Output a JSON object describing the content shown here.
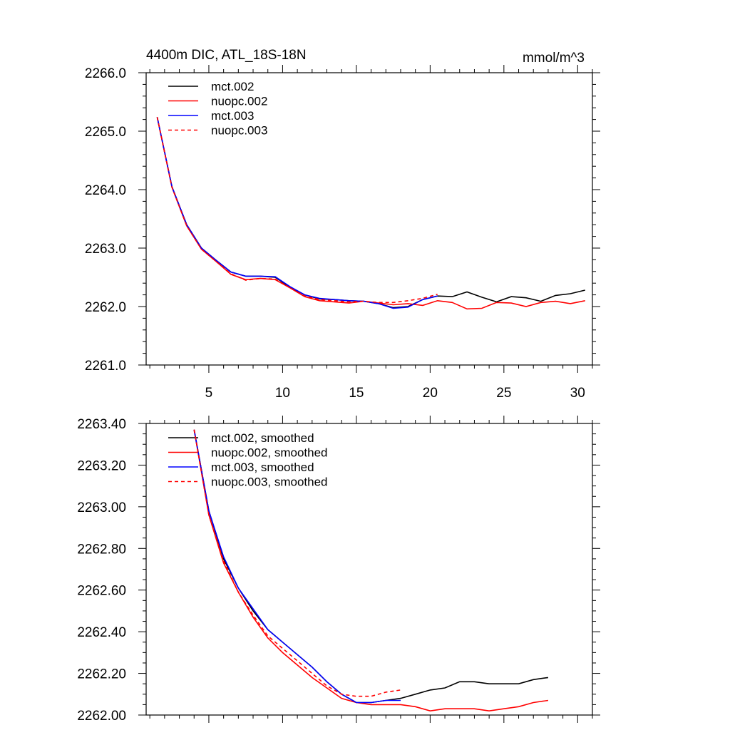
{
  "chart_data": [
    {
      "type": "line",
      "title": "4400m DIC, ATL_18S-18N",
      "units": "mmol/m^3",
      "xlabel": "",
      "ylabel": "",
      "xlim": [
        0.75,
        31
      ],
      "ylim": [
        2261.0,
        2266.0
      ],
      "xticks": [
        5,
        10,
        15,
        20,
        25,
        30
      ],
      "xtick_labels": [
        "5",
        "10",
        "15",
        "20",
        "25",
        "30"
      ],
      "yticks": [
        2261,
        2262,
        2263,
        2264,
        2265,
        2266
      ],
      "ytick_labels": [
        "2261.0",
        "2262.0",
        "2263.0",
        "2264.0",
        "2265.0",
        "2266.0"
      ],
      "legend_position": "top-left",
      "series": [
        {
          "name": "mct.002",
          "color": "#000000",
          "dash": "solid",
          "x": [
            1.5,
            2.5,
            3.5,
            4.5,
            5.5,
            6.5,
            7.5,
            8.5,
            9.5,
            10.5,
            11.5,
            12.5,
            13.5,
            14.5,
            15.5,
            16.5,
            17.5,
            18.5,
            19.5,
            20.5,
            21.5,
            22.5,
            23.5,
            24.5,
            25.5,
            26.5,
            27.5,
            28.5,
            29.5,
            30.5
          ],
          "values": [
            2265.24,
            2264.05,
            2263.4,
            2263.0,
            2262.79,
            2262.59,
            2262.52,
            2262.52,
            2262.5,
            2262.33,
            2262.2,
            2262.13,
            2262.12,
            2262.1,
            2262.09,
            2262.05,
            2261.98,
            2262.0,
            2262.12,
            2262.18,
            2262.17,
            2262.25,
            2262.16,
            2262.08,
            2262.17,
            2262.15,
            2262.09,
            2262.19,
            2262.22,
            2262.28
          ]
        },
        {
          "name": "nuopc.002",
          "color": "#ff0000",
          "dash": "solid",
          "x": [
            1.5,
            2.5,
            3.5,
            4.5,
            5.5,
            6.5,
            7.5,
            8.5,
            9.5,
            10.5,
            11.5,
            12.5,
            13.5,
            14.5,
            15.5,
            16.5,
            17.5,
            18.5,
            19.5,
            20.5,
            21.5,
            22.5,
            23.5,
            24.5,
            25.5,
            26.5,
            27.5,
            28.5,
            29.5,
            30.5
          ],
          "values": [
            2265.24,
            2264.04,
            2263.38,
            2262.98,
            2262.77,
            2262.55,
            2262.46,
            2262.48,
            2262.46,
            2262.32,
            2262.17,
            2262.1,
            2262.08,
            2262.06,
            2262.09,
            2262.06,
            2262.03,
            2262.05,
            2262.02,
            2262.1,
            2262.07,
            2261.96,
            2261.97,
            2262.07,
            2262.06,
            2262.0,
            2262.07,
            2262.09,
            2262.05,
            2262.1
          ]
        },
        {
          "name": "mct.003",
          "color": "#0000ff",
          "dash": "solid",
          "x": [
            1.5,
            2.5,
            3.5,
            4.5,
            5.5,
            6.5,
            7.5,
            8.5,
            9.5,
            10.5,
            11.5,
            12.5,
            13.5,
            14.5,
            15.5,
            16.5,
            17.5,
            18.5,
            19.5,
            20.5
          ],
          "values": [
            2265.24,
            2264.05,
            2263.4,
            2263.0,
            2262.79,
            2262.59,
            2262.52,
            2262.52,
            2262.51,
            2262.34,
            2262.2,
            2262.14,
            2262.12,
            2262.1,
            2262.09,
            2262.05,
            2261.97,
            2261.99,
            2262.12,
            2262.18
          ]
        },
        {
          "name": "nuopc.003",
          "color": "#ff0000",
          "dash": "dashed",
          "x": [
            1.5,
            2.5,
            3.5,
            4.5,
            5.5,
            6.5,
            7.5,
            8.5,
            9.5,
            10.5,
            11.5,
            12.5,
            13.5,
            14.5,
            15.5,
            16.5,
            17.5,
            18.5,
            19.5,
            20.5
          ],
          "values": [
            2265.24,
            2264.04,
            2263.38,
            2262.98,
            2262.77,
            2262.56,
            2262.45,
            2262.48,
            2262.47,
            2262.32,
            2262.18,
            2262.12,
            2262.1,
            2262.08,
            2262.09,
            2262.07,
            2262.07,
            2262.1,
            2262.14,
            2262.21
          ]
        }
      ]
    },
    {
      "type": "line",
      "title": "",
      "xlabel": "",
      "ylabel": "",
      "xlim": [
        0.75,
        31
      ],
      "ylim": [
        2262.0,
        2263.4
      ],
      "xticks": [
        5,
        10,
        15,
        20,
        25,
        30
      ],
      "yticks": [
        2262.0,
        2262.2,
        2262.4,
        2262.6,
        2262.8,
        2263.0,
        2263.2,
        2263.4
      ],
      "ytick_labels": [
        "2262.00",
        "2262.20",
        "2262.40",
        "2262.60",
        "2262.80",
        "2263.00",
        "2263.20",
        "2263.40"
      ],
      "legend_position": "top-left",
      "series": [
        {
          "name": "mct.002, smoothed",
          "color": "#000000",
          "dash": "solid",
          "x": [
            4.0,
            5.0,
            6.0,
            7.0,
            8.0,
            9.0,
            10.0,
            11.0,
            12.0,
            13.0,
            14.0,
            15.0,
            16.0,
            17.0,
            18.0,
            19.0,
            20.0,
            21.0,
            22.0,
            23.0,
            24.0,
            25.0,
            26.0,
            27.0,
            28.0
          ],
          "values": [
            2263.37,
            2262.98,
            2262.75,
            2262.61,
            2262.5,
            2262.41,
            2262.35,
            2262.29,
            2262.23,
            2262.16,
            2262.1,
            2262.06,
            2262.06,
            2262.07,
            2262.08,
            2262.1,
            2262.12,
            2262.13,
            2262.16,
            2262.16,
            2262.15,
            2262.15,
            2262.15,
            2262.17,
            2262.18
          ]
        },
        {
          "name": "nuopc.002, smoothed",
          "color": "#ff0000",
          "dash": "solid",
          "x": [
            4.0,
            5.0,
            6.0,
            7.0,
            8.0,
            9.0,
            10.0,
            11.0,
            12.0,
            13.0,
            14.0,
            15.0,
            16.0,
            17.0,
            18.0,
            19.0,
            20.0,
            21.0,
            22.0,
            23.0,
            24.0,
            25.0,
            26.0,
            27.0,
            28.0
          ],
          "values": [
            2263.37,
            2262.96,
            2262.73,
            2262.59,
            2262.47,
            2262.37,
            2262.3,
            2262.24,
            2262.18,
            2262.13,
            2262.08,
            2262.06,
            2262.05,
            2262.05,
            2262.05,
            2262.04,
            2262.02,
            2262.03,
            2262.03,
            2262.03,
            2262.02,
            2262.03,
            2262.04,
            2262.06,
            2262.07
          ]
        },
        {
          "name": "mct.003, smoothed",
          "color": "#0000ff",
          "dash": "solid",
          "x": [
            4.0,
            5.0,
            6.0,
            7.0,
            8.0,
            9.0,
            10.0,
            11.0,
            12.0,
            13.0,
            14.0,
            15.0,
            16.0,
            17.0,
            18.0
          ],
          "values": [
            2263.37,
            2262.98,
            2262.76,
            2262.61,
            2262.51,
            2262.41,
            2262.35,
            2262.29,
            2262.23,
            2262.16,
            2262.1,
            2262.06,
            2262.06,
            2262.07,
            2262.07
          ]
        },
        {
          "name": "nuopc.003, smoothed",
          "color": "#ff0000",
          "dash": "dashed",
          "x": [
            4.0,
            5.0,
            6.0,
            7.0,
            8.0,
            9.0,
            10.0,
            11.0,
            12.0,
            13.0,
            14.0,
            15.0,
            16.0,
            17.0,
            18.0
          ],
          "values": [
            2263.37,
            2262.96,
            2262.74,
            2262.59,
            2262.48,
            2262.38,
            2262.32,
            2262.26,
            2262.2,
            2262.14,
            2262.1,
            2262.09,
            2262.09,
            2262.11,
            2262.12
          ]
        }
      ]
    }
  ]
}
